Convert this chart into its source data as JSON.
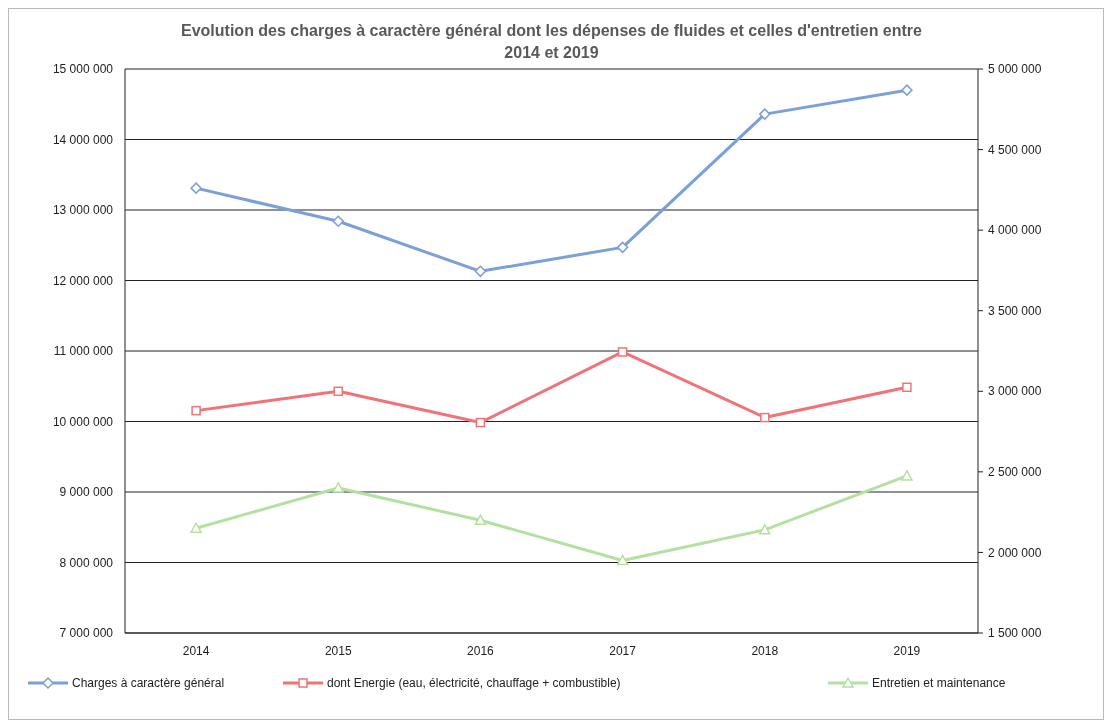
{
  "chart_data": {
    "type": "line",
    "title": "Evolution des charges à caractère général dont les dépenses de fluides et celles d'entretien entre 2014 et 2019",
    "categories": [
      "2014",
      "2015",
      "2016",
      "2017",
      "2018",
      "2019"
    ],
    "series": [
      {
        "name": "Charges à caractère général",
        "color": "#7b9fd9",
        "marker": "diamond",
        "values": [
          13310000,
          12840000,
          12130000,
          12470000,
          14360000,
          14700000
        ]
      },
      {
        "name": "dont Energie (eau, électricité, chauffage + combustible)",
        "color": "#f07378",
        "marker": "square",
        "axis": "y2",
        "values": [
          2880000,
          3000000,
          2806000,
          3244000,
          2837000,
          3025000
        ]
      },
      {
        "name": "Entretien et maintenance",
        "color": "#b5e0a0",
        "marker": "triangle",
        "axis": "y2",
        "values": [
          2150000,
          2400000,
          2200000,
          1950000,
          2140000,
          2475000
        ]
      }
    ],
    "ylim": [
      7000000,
      15000000
    ],
    "yticks": [
      {
        "value": 7000000,
        "label": "7 000 000"
      },
      {
        "value": 8000000,
        "label": "8 000 000"
      },
      {
        "value": 9000000,
        "label": "9 000 000"
      },
      {
        "value": 10000000,
        "label": "10 000 000"
      },
      {
        "value": 11000000,
        "label": "11 000 000"
      },
      {
        "value": 12000000,
        "label": "12 000 000"
      },
      {
        "value": 13000000,
        "label": "13 000 000"
      },
      {
        "value": 14000000,
        "label": "14 000 000"
      },
      {
        "value": 15000000,
        "label": "15 000 000"
      }
    ],
    "y2lim": [
      1500000,
      5000000
    ],
    "y2ticks": [
      {
        "value": 1500000,
        "label": "1 500 000"
      },
      {
        "value": 2000000,
        "label": "2 000 000"
      },
      {
        "value": 2500000,
        "label": "2 500 000"
      },
      {
        "value": 3000000,
        "label": "3 000 000"
      },
      {
        "value": 3500000,
        "label": "3 500 000"
      },
      {
        "value": 4000000,
        "label": "4 000 000"
      },
      {
        "value": 4500000,
        "label": "4 500 000"
      },
      {
        "value": 5000000,
        "label": "5 000 000"
      }
    ],
    "grid": "y",
    "legend": "bottom",
    "line_style": "solid"
  }
}
